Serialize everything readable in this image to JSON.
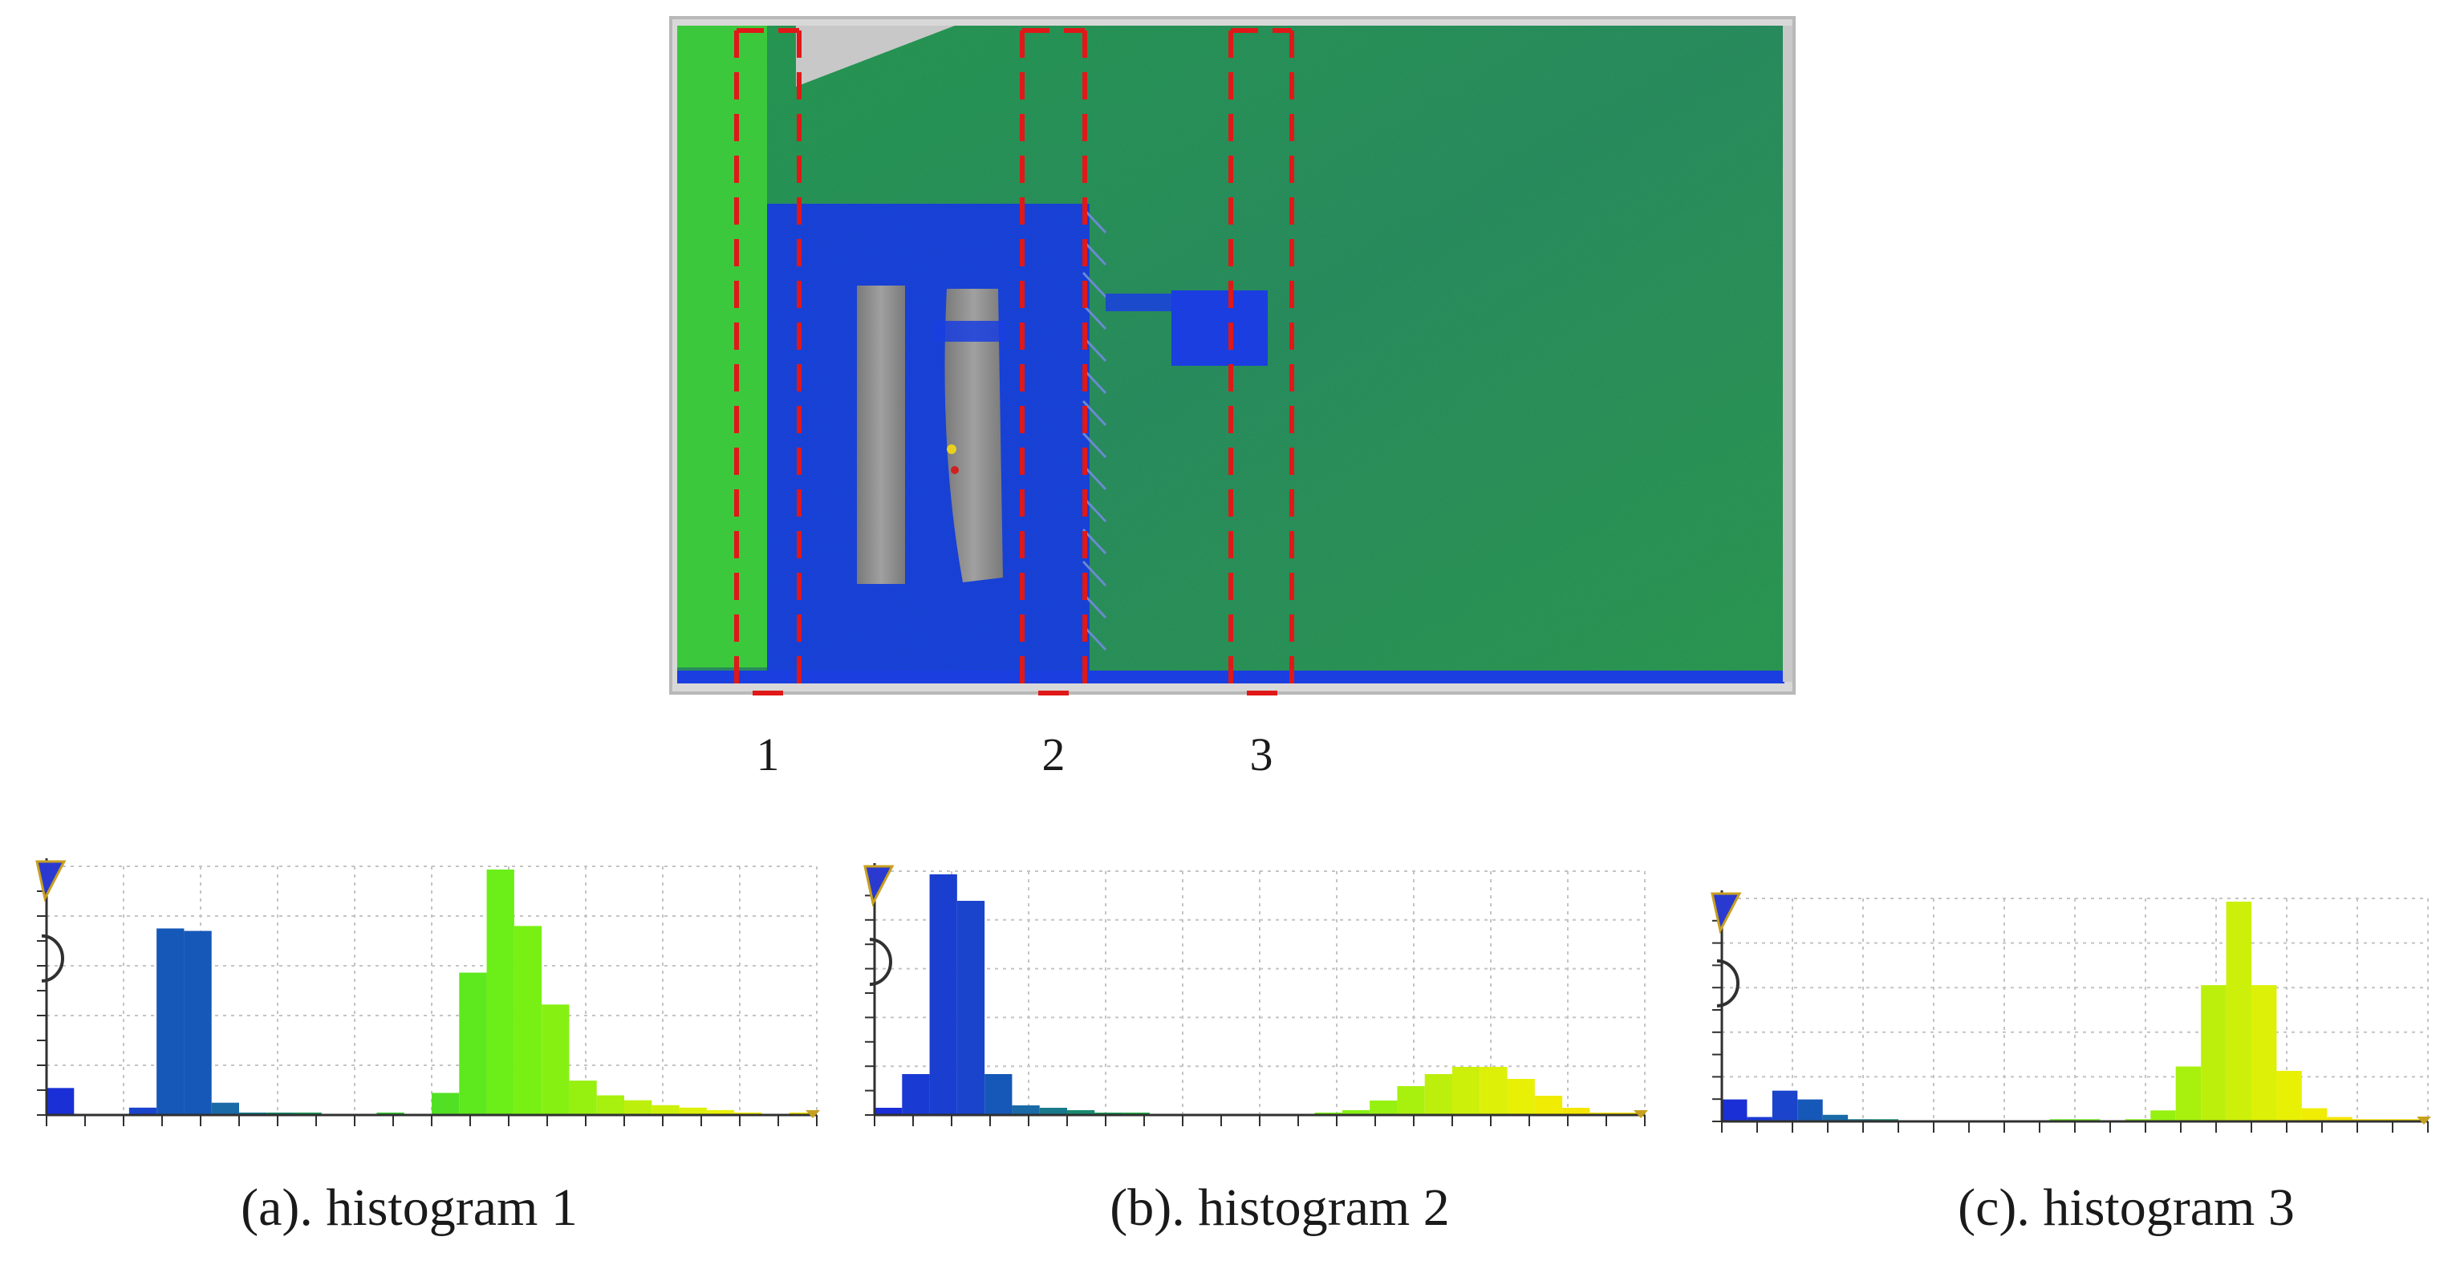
{
  "scan": {
    "strip_labels": [
      "1",
      "2",
      "3"
    ],
    "colors": {
      "wall_green": "#2e9a4a",
      "wall_left_green": "#3cc83c",
      "door_blue": "#1a3ee0",
      "window_gray": "#8a8a8a",
      "strip_red": "#e01818",
      "ceiling_gray": "#c8c8c8"
    }
  },
  "captions": [
    "(a). histogram 1",
    "(b). histogram 2",
    "(c). histogram 3"
  ],
  "chart_data": [
    {
      "type": "bar",
      "title": "(a). histogram 1",
      "xlabel": "",
      "ylabel": "",
      "grid": true,
      "ylim": [
        0,
        100
      ],
      "bins": 28,
      "values": [
        11,
        0,
        0,
        3,
        76,
        75,
        5,
        1,
        1,
        1,
        0,
        0,
        1,
        0,
        9,
        58,
        100,
        77,
        45,
        14,
        8,
        6,
        4,
        3,
        2,
        1,
        0,
        1
      ],
      "colors": [
        "#1a2fd6",
        "#1a2fd6",
        "#1a2fd6",
        "#1a44cc",
        "#1558b8",
        "#1558b8",
        "#1a6aa8",
        "#187a8c",
        "#1a8a70",
        "#1a9a58",
        "#22aa44",
        "#2ab83a",
        "#34c834",
        "#44d82a",
        "#52e024",
        "#5ee81e",
        "#6cee18",
        "#78f014",
        "#86f012",
        "#96f010",
        "#a8f00e",
        "#bcf00c",
        "#ccf00a",
        "#dcf008",
        "#e8f006",
        "#f0ec04",
        "#f4e602",
        "#f6e000"
      ]
    },
    {
      "type": "bar",
      "title": "(b). histogram 2",
      "xlabel": "",
      "ylabel": "",
      "grid": true,
      "ylim": [
        0,
        100
      ],
      "bins": 28,
      "values": [
        3,
        17,
        100,
        89,
        17,
        4,
        3,
        2,
        1,
        1,
        0,
        0,
        0,
        0,
        0,
        0,
        1,
        2,
        6,
        12,
        17,
        20,
        20,
        15,
        8,
        3,
        1,
        1
      ],
      "colors": [
        "#1a2fd6",
        "#1a3ad4",
        "#1a3ed0",
        "#1a44cc",
        "#1558b8",
        "#1a6aa8",
        "#187a8c",
        "#1a8a70",
        "#1a9a58",
        "#22aa44",
        "#2ab83a",
        "#34c834",
        "#44d82a",
        "#52e024",
        "#5ee81e",
        "#6cee18",
        "#78f014",
        "#86f012",
        "#96f010",
        "#a8f00e",
        "#bcf00c",
        "#ccf00a",
        "#dcf008",
        "#e8f006",
        "#f0ec04",
        "#f4e602",
        "#f6e000",
        "#f6e000"
      ]
    },
    {
      "type": "bar",
      "title": "(c). histogram 3",
      "xlabel": "",
      "ylabel": "",
      "grid": true,
      "ylim": [
        0,
        100
      ],
      "bins": 28,
      "values": [
        10,
        2,
        14,
        10,
        3,
        1,
        1,
        0,
        0,
        0,
        0,
        0,
        0,
        1,
        1,
        0,
        1,
        5,
        25,
        62,
        100,
        62,
        23,
        6,
        2,
        1,
        1,
        1
      ],
      "colors": [
        "#1a2fd6",
        "#1a3ad4",
        "#1a44cc",
        "#1558b8",
        "#1a6aa8",
        "#187a8c",
        "#1a8a70",
        "#1a9a58",
        "#22aa44",
        "#2ab83a",
        "#34c834",
        "#44d82a",
        "#52e024",
        "#5ee81e",
        "#6cee18",
        "#78f014",
        "#86f012",
        "#96f010",
        "#a8f00e",
        "#bcf00c",
        "#ccf00a",
        "#dcf008",
        "#e8f006",
        "#f0ec04",
        "#f4e602",
        "#f6e000",
        "#f6e000",
        "#f6e000"
      ]
    }
  ]
}
